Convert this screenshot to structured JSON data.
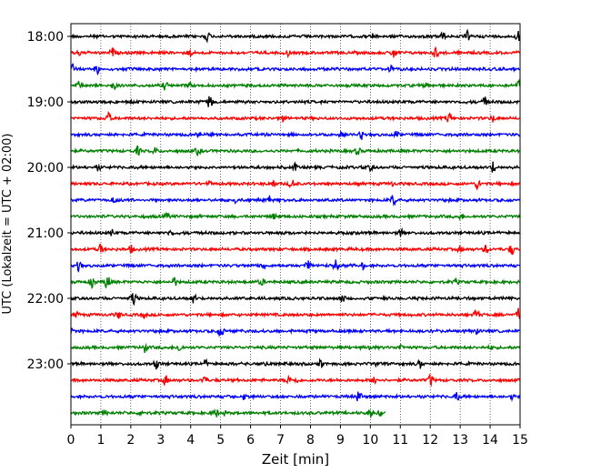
{
  "chart_data": {
    "type": "line",
    "subtype": "helicorder",
    "title": "",
    "xlabel": "Zeit  [min]",
    "ylabel": "UTC (Lokalzeit = UTC + 02:00)",
    "xlim": [
      0,
      15
    ],
    "x_ticks": [
      "0",
      "1",
      "2",
      "3",
      "4",
      "5",
      "6",
      "7",
      "8",
      "9",
      "10",
      "11",
      "12",
      "13",
      "14",
      "15"
    ],
    "y_ticks": [
      "18:00",
      "19:00",
      "20:00",
      "21:00",
      "22:00",
      "23:00"
    ],
    "trace_interval_min": 15,
    "start_time": "18:00",
    "trace_colors": [
      "#000000",
      "#ff0000",
      "#0000ff",
      "#008000"
    ],
    "grid": "vertical dotted",
    "traces": [
      {
        "start": "18:00",
        "end_min": 15
      },
      {
        "start": "18:15",
        "end_min": 15
      },
      {
        "start": "18:30",
        "end_min": 15
      },
      {
        "start": "18:45",
        "end_min": 15
      },
      {
        "start": "19:00",
        "end_min": 15
      },
      {
        "start": "19:15",
        "end_min": 15
      },
      {
        "start": "19:30",
        "end_min": 15
      },
      {
        "start": "19:45",
        "end_min": 15
      },
      {
        "start": "20:00",
        "end_min": 15
      },
      {
        "start": "20:15",
        "end_min": 15
      },
      {
        "start": "20:30",
        "end_min": 15
      },
      {
        "start": "20:45",
        "end_min": 15
      },
      {
        "start": "21:00",
        "end_min": 15
      },
      {
        "start": "21:15",
        "end_min": 15
      },
      {
        "start": "21:30",
        "end_min": 15
      },
      {
        "start": "21:45",
        "end_min": 15
      },
      {
        "start": "22:00",
        "end_min": 15
      },
      {
        "start": "22:15",
        "end_min": 15
      },
      {
        "start": "22:30",
        "end_min": 15
      },
      {
        "start": "22:45",
        "end_min": 15
      },
      {
        "start": "23:00",
        "end_min": 15
      },
      {
        "start": "23:15",
        "end_min": 15
      },
      {
        "start": "23:30",
        "end_min": 15
      },
      {
        "start": "23:45",
        "end_min": 10.5
      }
    ]
  }
}
